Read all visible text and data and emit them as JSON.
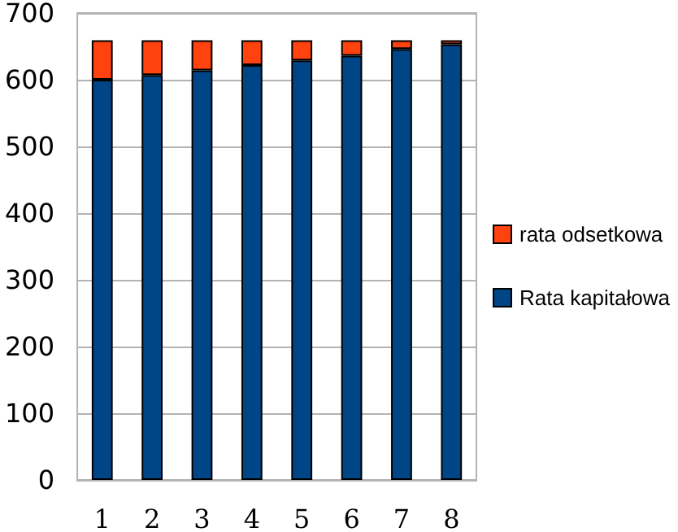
{
  "chart_data": {
    "type": "bar",
    "stacked": true,
    "categories": [
      "1",
      "2",
      "3",
      "4",
      "5",
      "6",
      "7",
      "8"
    ],
    "series": [
      {
        "name": "Rata kapitałowa",
        "color": "#004586",
        "values": [
          600,
          607,
          614,
          622,
          629,
          636,
          646,
          653
        ]
      },
      {
        "name": "rata odsetkowa",
        "color": "#ff420e",
        "values": [
          59,
          52,
          45,
          37,
          30,
          23,
          13,
          6
        ]
      }
    ],
    "ylim": [
      0,
      700
    ],
    "yticks": [
      0,
      100,
      200,
      300,
      400,
      500,
      600,
      700
    ],
    "grid": "y",
    "legend": "right"
  }
}
